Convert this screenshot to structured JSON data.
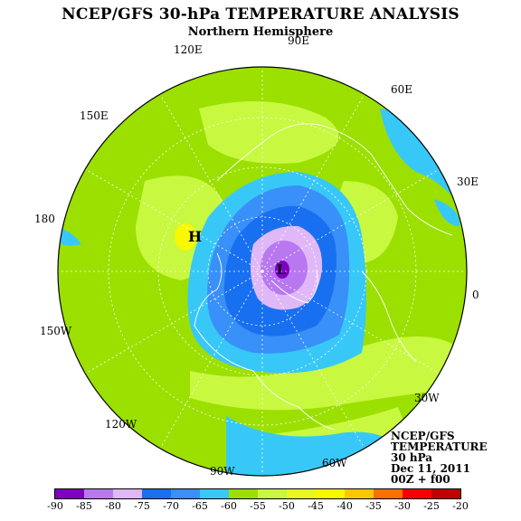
{
  "header": {
    "title": "NCEP/GFS 30-hPa TEMPERATURE ANALYSIS",
    "subtitle": "Northern Hemisphere"
  },
  "map": {
    "longitude_labels": [
      "90E",
      "60E",
      "30E",
      "0",
      "30W",
      "60W",
      "90W",
      "120W",
      "150W",
      "180",
      "150E",
      "120E"
    ],
    "high_marker": "H",
    "low_marker": "L",
    "colors": {
      "ocean_rim": "#9be000",
      "cyan": "#38c8f8",
      "light_blue": "#38a0f8",
      "blue": "#1870f0",
      "lavender": "#d8b0f8",
      "purple": "#a860f0",
      "deep_purple": "#8000c0",
      "yellow_green": "#c8f840",
      "yellow": "#f8f800"
    }
  },
  "info_box": {
    "lines": [
      "NCEP/GFS",
      "TEMPERATURE",
      "30 hPa",
      "Dec 11, 2011",
      "00Z + f00"
    ]
  },
  "legend": {
    "colors": [
      "#8000c0",
      "#b878f0",
      "#e0b8f8",
      "#1870f0",
      "#3890f8",
      "#38c8f8",
      "#9be000",
      "#c8f840",
      "#e8f820",
      "#f8f800",
      "#f8c800",
      "#f87000",
      "#f80000",
      "#c00000",
      "#704040",
      "#909090"
    ],
    "ticks": [
      "-90",
      "-85",
      "-80",
      "-75",
      "-70",
      "-65",
      "-60",
      "-55",
      "-50",
      "-45",
      "-40",
      "-35",
      "-30",
      "-25",
      "-20"
    ]
  }
}
